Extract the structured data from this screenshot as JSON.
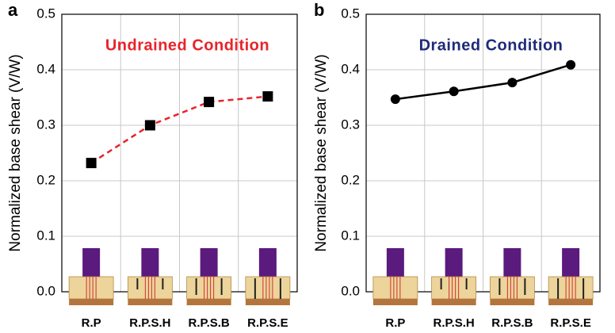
{
  "chart_data": [
    {
      "type": "line",
      "panel": "a",
      "annotation": "Undrained Condition",
      "annotation_color": "#e8232a",
      "ylabel": "Normalized base shear (V/W)",
      "categories": [
        "R.P",
        "R.P.S.H",
        "R.P.S.B",
        "R.P.S.E"
      ],
      "series": [
        {
          "color": "#e8232a",
          "line_style": "dashed",
          "marker": "square",
          "marker_color": "#000000",
          "values": [
            0.232,
            0.3,
            0.342,
            0.352
          ]
        }
      ],
      "ylim": [
        0,
        0.5
      ],
      "yticks": [
        {
          "value": 0,
          "label": "0.0"
        },
        0.1,
        0.2,
        0.3,
        0.4,
        0.5
      ],
      "grid": true
    },
    {
      "type": "line",
      "panel": "b",
      "annotation": "Drained Condition",
      "annotation_color": "#1f2a7a",
      "ylabel": "Normalized base shear (V/W)",
      "categories": [
        "R.P",
        "R.P.S.H",
        "R.P.S.B",
        "R.P.S.E"
      ],
      "series": [
        {
          "color": "#000000",
          "line_style": "solid",
          "marker": "circle",
          "marker_color": "#000000",
          "values": [
            0.347,
            0.361,
            0.377,
            0.409
          ]
        }
      ],
      "ylim": [
        0,
        0.5
      ],
      "yticks": [
        {
          "value": 0,
          "label": "0.0"
        },
        0.1,
        0.2,
        0.3,
        0.4,
        0.5
      ],
      "grid": true
    }
  ]
}
